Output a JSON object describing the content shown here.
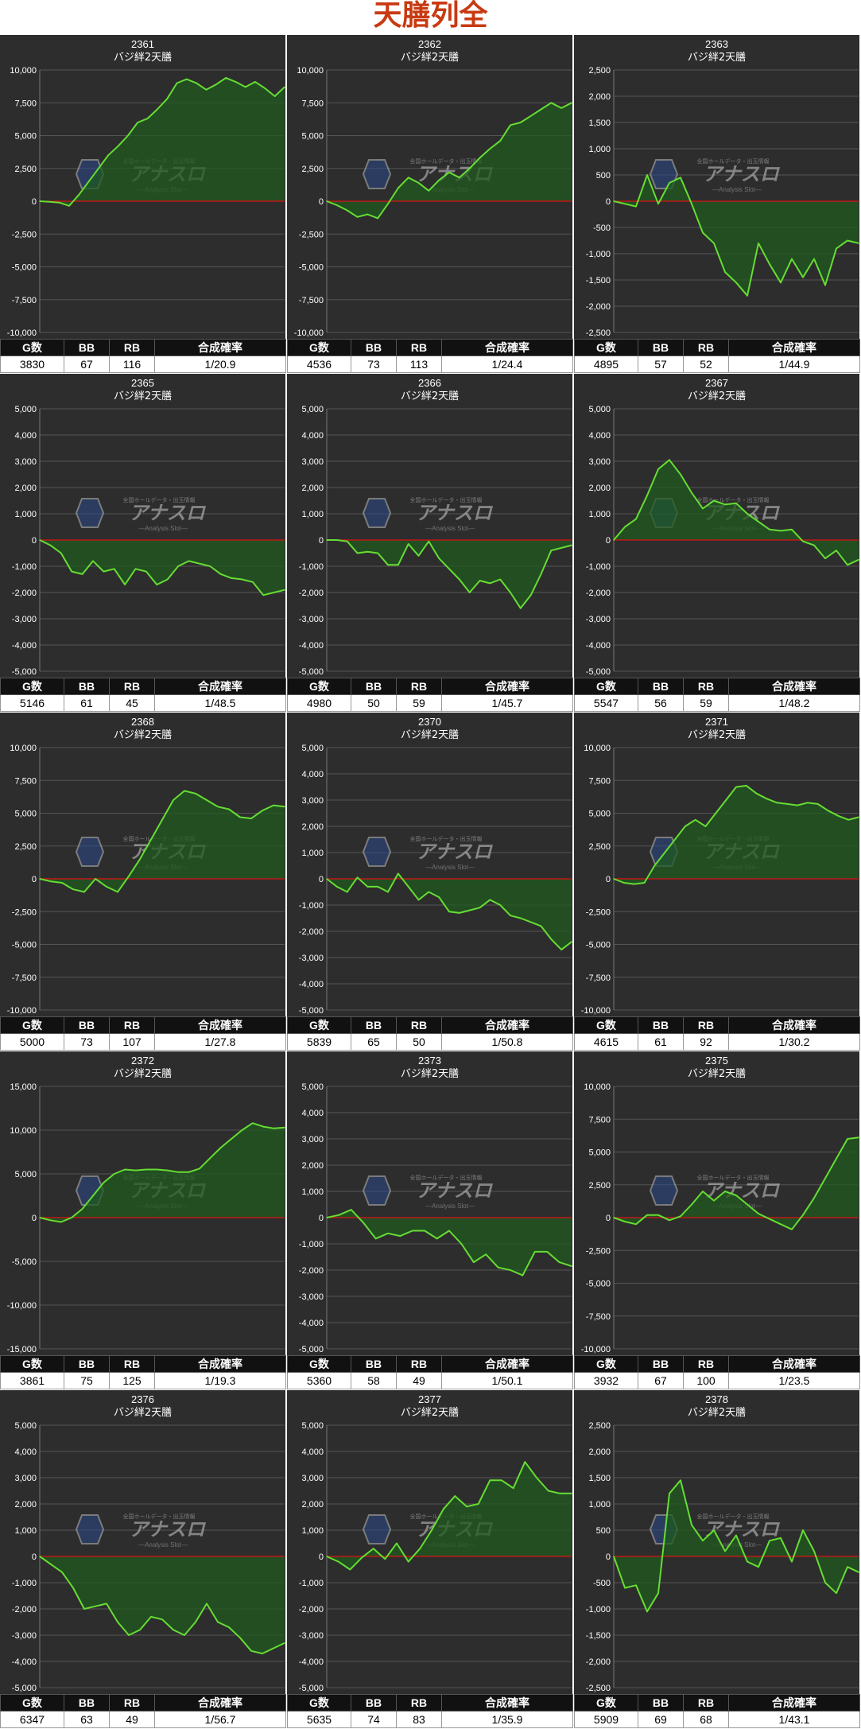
{
  "page": {
    "title": "天膳列全"
  },
  "headers": {
    "g": "G数",
    "bb": "BB",
    "rb": "RB",
    "prob": "合成確率"
  },
  "watermark": {
    "main": "アナスロ",
    "top": "全国ホールデータ・出玉情報",
    "sub": "―Analysis Slot―"
  },
  "colors": {
    "bg": "#2d2d2d",
    "line": "#66dd33",
    "fill": "#1f5a1f",
    "zero": "#dd1111",
    "grid": "#555555",
    "text": "#ffffff"
  },
  "panels": [
    {
      "machine": "2361",
      "name": "バジ絆2天膳",
      "g": "3830",
      "bb": "67",
      "rb": "116",
      "prob": "1/20.9"
    },
    {
      "machine": "2362",
      "name": "バジ絆2天膳",
      "g": "4536",
      "bb": "73",
      "rb": "113",
      "prob": "1/24.4"
    },
    {
      "machine": "2363",
      "name": "バジ絆2天膳",
      "g": "4895",
      "bb": "57",
      "rb": "52",
      "prob": "1/44.9"
    },
    {
      "machine": "2365",
      "name": "バジ絆2天膳",
      "g": "5146",
      "bb": "61",
      "rb": "45",
      "prob": "1/48.5"
    },
    {
      "machine": "2366",
      "name": "バジ絆2天膳",
      "g": "4980",
      "bb": "50",
      "rb": "59",
      "prob": "1/45.7"
    },
    {
      "machine": "2367",
      "name": "バジ絆2天膳",
      "g": "5547",
      "bb": "56",
      "rb": "59",
      "prob": "1/48.2"
    },
    {
      "machine": "2368",
      "name": "バジ絆2天膳",
      "g": "5000",
      "bb": "73",
      "rb": "107",
      "prob": "1/27.8"
    },
    {
      "machine": "2370",
      "name": "バジ絆2天膳",
      "g": "5839",
      "bb": "65",
      "rb": "50",
      "prob": "1/50.8"
    },
    {
      "machine": "2371",
      "name": "バジ絆2天膳",
      "g": "4615",
      "bb": "61",
      "rb": "92",
      "prob": "1/30.2"
    },
    {
      "machine": "2372",
      "name": "バジ絆2天膳",
      "g": "3861",
      "bb": "75",
      "rb": "125",
      "prob": "1/19.3"
    },
    {
      "machine": "2373",
      "name": "バジ絆2天膳",
      "g": "5360",
      "bb": "58",
      "rb": "49",
      "prob": "1/50.1"
    },
    {
      "machine": "2375",
      "name": "バジ絆2天膳",
      "g": "3932",
      "bb": "67",
      "rb": "100",
      "prob": "1/23.5"
    },
    {
      "machine": "2376",
      "name": "バジ絆2天膳",
      "g": "6347",
      "bb": "63",
      "rb": "49",
      "prob": "1/56.7"
    },
    {
      "machine": "2377",
      "name": "バジ絆2天膳",
      "g": "5635",
      "bb": "74",
      "rb": "83",
      "prob": "1/35.9"
    },
    {
      "machine": "2378",
      "name": "バジ絆2天膳",
      "g": "5909",
      "bb": "69",
      "rb": "68",
      "prob": "1/43.1"
    }
  ],
  "chart_data": [
    {
      "type": "line",
      "title": "2361",
      "subtitle": "バジ絆2天膳",
      "ylim": [
        -10000,
        10000
      ],
      "yticks": [
        -10000,
        -7500,
        -5000,
        -2500,
        0,
        2500,
        5000,
        7500,
        10000
      ],
      "values": [
        0,
        -50,
        -100,
        -350,
        500,
        1500,
        2500,
        3500,
        4200,
        5000,
        6000,
        6300,
        7000,
        7800,
        9000,
        9300,
        9000,
        8500,
        8900,
        9400,
        9100,
        8700,
        9100,
        8600,
        8000,
        8700
      ]
    },
    {
      "type": "line",
      "title": "2362",
      "subtitle": "バジ絆2天膳",
      "ylim": [
        -10000,
        10000
      ],
      "yticks": [
        -10000,
        -7500,
        -5000,
        -2500,
        0,
        2500,
        5000,
        7500,
        10000
      ],
      "values": [
        0,
        -300,
        -700,
        -1200,
        -1000,
        -1300,
        -200,
        1000,
        1800,
        1400,
        800,
        1600,
        2200,
        1800,
        2500,
        3300,
        4000,
        4600,
        5800,
        6000,
        6500,
        7000,
        7500,
        7100,
        7500
      ]
    },
    {
      "type": "line",
      "title": "2363",
      "subtitle": "バジ絆2天膳",
      "ylim": [
        -2500,
        2500
      ],
      "yticks": [
        -2500,
        -2000,
        -1500,
        -1000,
        -500,
        0,
        500,
        1000,
        1500,
        2000,
        2500
      ],
      "values": [
        0,
        -50,
        -100,
        500,
        -50,
        350,
        450,
        -50,
        -600,
        -800,
        -1350,
        -1550,
        -1800,
        -800,
        -1200,
        -1550,
        -1100,
        -1450,
        -1100,
        -1600,
        -900,
        -750,
        -800
      ]
    },
    {
      "type": "line",
      "title": "2365",
      "subtitle": "バジ絆2天膳",
      "ylim": [
        -5000,
        5000
      ],
      "yticks": [
        -5000,
        -4000,
        -3000,
        -2000,
        -1000,
        0,
        1000,
        2000,
        3000,
        4000,
        5000
      ],
      "values": [
        0,
        -200,
        -500,
        -1200,
        -1300,
        -800,
        -1200,
        -1100,
        -1700,
        -1100,
        -1200,
        -1700,
        -1500,
        -1000,
        -800,
        -900,
        -1000,
        -1300,
        -1450,
        -1500,
        -1600,
        -2100,
        -2000,
        -1900
      ]
    },
    {
      "type": "line",
      "title": "2366",
      "subtitle": "バジ絆2天膳",
      "ylim": [
        -5000,
        5000
      ],
      "yticks": [
        -5000,
        -4000,
        -3000,
        -2000,
        -1000,
        0,
        1000,
        2000,
        3000,
        4000,
        5000
      ],
      "values": [
        0,
        0,
        -50,
        -500,
        -450,
        -500,
        -950,
        -950,
        -150,
        -600,
        -50,
        -700,
        -1100,
        -1500,
        -2000,
        -1550,
        -1650,
        -1500,
        -2000,
        -2600,
        -2100,
        -1300,
        -400,
        -300,
        -200
      ]
    },
    {
      "type": "line",
      "title": "2367",
      "subtitle": "バジ絆2天膳",
      "ylim": [
        -5000,
        5000
      ],
      "yticks": [
        -5000,
        -4000,
        -3000,
        -2000,
        -1000,
        0,
        1000,
        2000,
        3000,
        4000,
        5000
      ],
      "values": [
        0,
        500,
        800,
        1700,
        2700,
        3050,
        2500,
        1800,
        1200,
        1500,
        1350,
        1400,
        1000,
        700,
        400,
        350,
        400,
        -50,
        -200,
        -700,
        -400,
        -950,
        -750
      ]
    },
    {
      "type": "line",
      "title": "2368",
      "subtitle": "バジ絆2天膳",
      "ylim": [
        -10000,
        10000
      ],
      "yticks": [
        -10000,
        -7500,
        -5000,
        -2500,
        0,
        2500,
        5000,
        7500,
        10000
      ],
      "values": [
        0,
        -200,
        -300,
        -800,
        -1000,
        0,
        -600,
        -1000,
        200,
        1500,
        3000,
        4500,
        6000,
        6700,
        6500,
        6000,
        5500,
        5300,
        4700,
        4600,
        5200,
        5600,
        5500
      ]
    },
    {
      "type": "line",
      "title": "2370",
      "subtitle": "バジ絆2天膳",
      "ylim": [
        -5000,
        5000
      ],
      "yticks": [
        -5000,
        -4000,
        -3000,
        -2000,
        -1000,
        0,
        1000,
        2000,
        3000,
        4000,
        5000
      ],
      "values": [
        0,
        -300,
        -500,
        50,
        -300,
        -300,
        -500,
        200,
        -300,
        -800,
        -500,
        -700,
        -1250,
        -1300,
        -1200,
        -1100,
        -800,
        -1000,
        -1400,
        -1500,
        -1650,
        -1800,
        -2300,
        -2700,
        -2400
      ]
    },
    {
      "type": "line",
      "title": "2371",
      "subtitle": "バジ絆2天膳",
      "ylim": [
        -10000,
        10000
      ],
      "yticks": [
        -10000,
        -7500,
        -5000,
        -2500,
        0,
        2500,
        5000,
        7500,
        10000
      ],
      "values": [
        0,
        -300,
        -400,
        -300,
        1000,
        2000,
        3000,
        4000,
        4500,
        4000,
        5000,
        6000,
        7000,
        7100,
        6500,
        6100,
        5800,
        5700,
        5600,
        5800,
        5700,
        5200,
        4800,
        4500,
        4700
      ]
    },
    {
      "type": "line",
      "title": "2372",
      "subtitle": "バジ絆2天膳",
      "ylim": [
        -15000,
        15000
      ],
      "yticks": [
        -15000,
        -10000,
        -5000,
        0,
        5000,
        10000,
        15000
      ],
      "values": [
        0,
        -300,
        -500,
        0,
        1000,
        2500,
        4000,
        5000,
        5500,
        5400,
        5500,
        5500,
        5400,
        5200,
        5200,
        5600,
        6800,
        8000,
        9000,
        10000,
        10800,
        10400,
        10200,
        10300
      ]
    },
    {
      "type": "line",
      "title": "2373",
      "subtitle": "バジ絆2天膳",
      "ylim": [
        -5000,
        5000
      ],
      "yticks": [
        -5000,
        -4000,
        -3000,
        -2000,
        -1000,
        0,
        1000,
        2000,
        3000,
        4000,
        5000
      ],
      "values": [
        0,
        100,
        300,
        -200,
        -800,
        -600,
        -700,
        -500,
        -500,
        -800,
        -500,
        -1000,
        -1700,
        -1400,
        -1900,
        -2000,
        -2200,
        -1300,
        -1300,
        -1700,
        -1850
      ]
    },
    {
      "type": "line",
      "title": "2375",
      "subtitle": "バジ絆2天膳",
      "ylim": [
        -10000,
        10000
      ],
      "yticks": [
        -10000,
        -7500,
        -5000,
        -2500,
        0,
        2500,
        5000,
        7500,
        10000
      ],
      "values": [
        0,
        -300,
        -500,
        200,
        200,
        -200,
        100,
        1000,
        2000,
        1300,
        2000,
        1700,
        1000,
        300,
        -100,
        -500,
        -900,
        200,
        1500,
        3000,
        4500,
        6000,
        6100
      ]
    },
    {
      "type": "line",
      "title": "2376",
      "subtitle": "バジ絆2天膳",
      "ylim": [
        -5000,
        5000
      ],
      "yticks": [
        -5000,
        -4000,
        -3000,
        -2000,
        -1000,
        0,
        1000,
        2000,
        3000,
        4000,
        5000
      ],
      "values": [
        0,
        -300,
        -600,
        -1200,
        -2000,
        -1900,
        -1800,
        -2500,
        -3000,
        -2800,
        -2300,
        -2400,
        -2800,
        -3000,
        -2500,
        -1800,
        -2500,
        -2700,
        -3100,
        -3600,
        -3700,
        -3500,
        -3300
      ]
    },
    {
      "type": "line",
      "title": "2377",
      "subtitle": "バジ絆2天膳",
      "ylim": [
        -5000,
        5000
      ],
      "yticks": [
        -5000,
        -4000,
        -3000,
        -2000,
        -1000,
        0,
        1000,
        2000,
        3000,
        4000,
        5000
      ],
      "values": [
        0,
        -200,
        -500,
        -50,
        300,
        -100,
        500,
        -200,
        300,
        1000,
        1800,
        2300,
        1900,
        2000,
        2900,
        2900,
        2600,
        3600,
        3000,
        2500,
        2400,
        2400
      ]
    },
    {
      "type": "line",
      "title": "2378",
      "subtitle": "バジ絆2天膳",
      "ylim": [
        -2500,
        2500
      ],
      "yticks": [
        -2500,
        -2000,
        -1500,
        -1000,
        -500,
        0,
        500,
        1000,
        1500,
        2000,
        2500
      ],
      "values": [
        0,
        -600,
        -550,
        -1050,
        -700,
        1200,
        1450,
        600,
        300,
        500,
        100,
        400,
        -100,
        -200,
        300,
        350,
        -100,
        500,
        100,
        -500,
        -700,
        -200,
        -300
      ]
    }
  ]
}
